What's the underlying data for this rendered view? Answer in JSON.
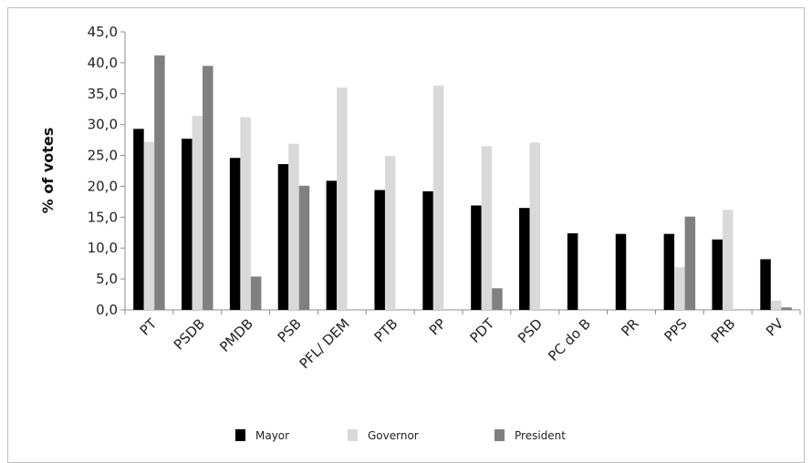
{
  "chart_data": {
    "type": "bar",
    "title": "",
    "xlabel": "",
    "ylabel": "% of votes",
    "ylim": [
      0,
      45
    ],
    "yticks": [
      "0,0",
      "5,0",
      "10,0",
      "15,0",
      "20,0",
      "25,0",
      "30,0",
      "35,0",
      "40,0",
      "45,0"
    ],
    "grid": false,
    "legend_position": "bottom",
    "categories": [
      "PT",
      "PSDB",
      "PMDB",
      "PSB",
      "PFL/ DEM",
      "PTB",
      "PP",
      "PDT",
      "PSD",
      "PC do B",
      "PR",
      "PPS",
      "PRB",
      "PV"
    ],
    "series": [
      {
        "name": "Mayor",
        "color": "#000000",
        "values": [
          29.3,
          27.7,
          24.6,
          23.6,
          20.9,
          19.4,
          19.2,
          16.9,
          16.5,
          12.4,
          12.3,
          12.3,
          11.4,
          8.2
        ]
      },
      {
        "name": "Governor",
        "color": "#d9d9d9",
        "values": [
          27.2,
          31.4,
          31.2,
          26.9,
          36.0,
          24.9,
          36.3,
          26.5,
          27.1,
          0,
          0,
          6.9,
          16.2,
          1.5
        ]
      },
      {
        "name": "President",
        "color": "#808080",
        "values": [
          41.2,
          39.5,
          5.4,
          20.1,
          0,
          0,
          0,
          3.5,
          0,
          0,
          0,
          15.1,
          0,
          0.4
        ]
      }
    ]
  }
}
